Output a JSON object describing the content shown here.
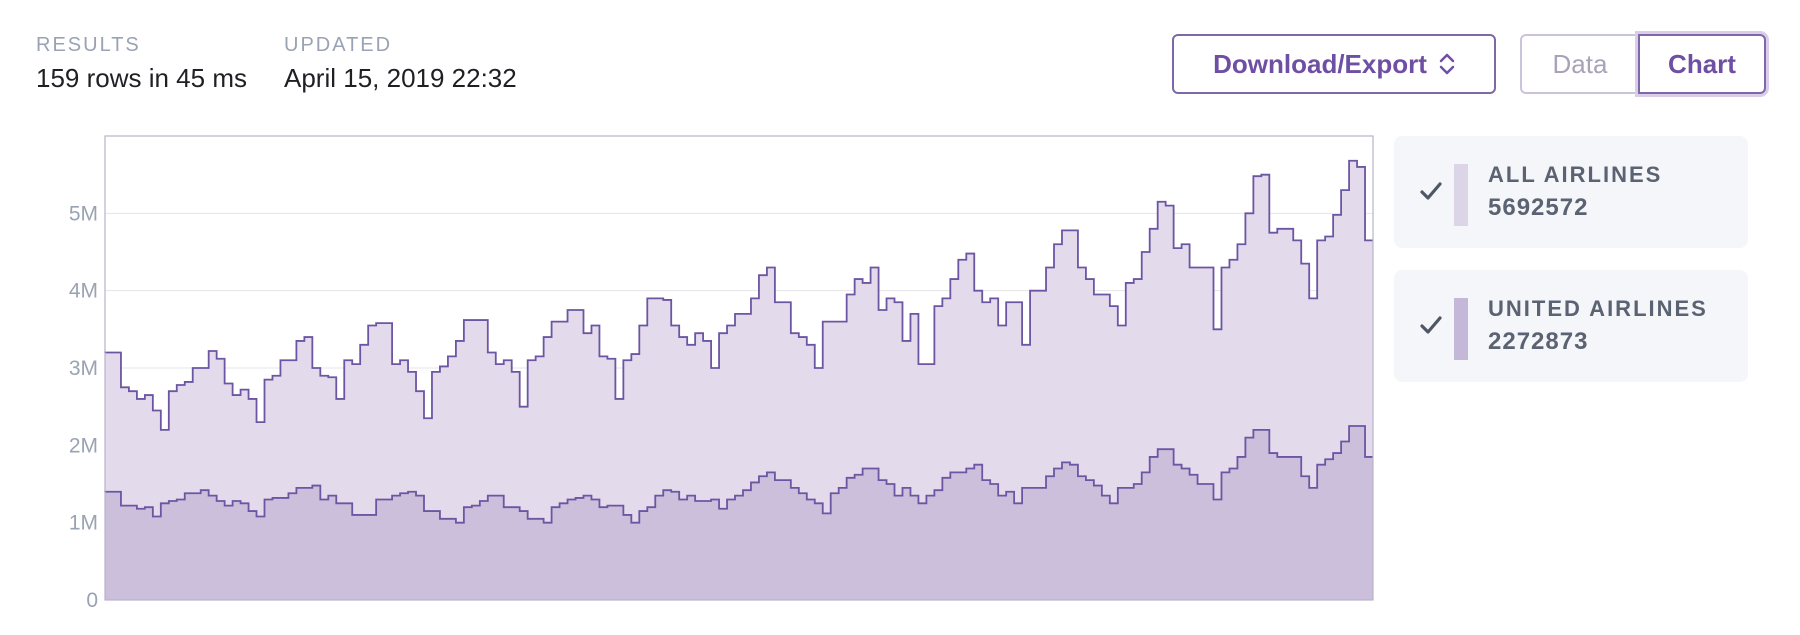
{
  "header": {
    "results_label": "RESULTS",
    "results_value": "159 rows in 45 ms",
    "updated_label": "UPDATED",
    "updated_value": "April 15, 2019 22:32"
  },
  "toolbar": {
    "download_label": "Download/Export",
    "view_toggle": [
      "Data",
      "Chart"
    ],
    "selected_view": "Chart"
  },
  "colors": {
    "accent": "#6f4fa4",
    "line": "#6c55a3",
    "all_fill": "#e3dbec",
    "united_fill": "#cbbfdb",
    "swatch_all": "#dcd5e7",
    "swatch_united": "#c5b7d8"
  },
  "legend": [
    {
      "name": "ALL AIRLINES",
      "value": "5692572",
      "checked": true,
      "icon": "check-icon"
    },
    {
      "name": "UNITED AIRLINES",
      "value": "2272873",
      "checked": true,
      "icon": "check-icon"
    }
  ],
  "chart_data": {
    "type": "area",
    "step": true,
    "ylim": [
      0,
      6000000
    ],
    "y_ticks": [
      {
        "value": 0,
        "label": "0"
      },
      {
        "value": 1000000,
        "label": "1M"
      },
      {
        "value": 2000000,
        "label": "2M"
      },
      {
        "value": 3000000,
        "label": "3M"
      },
      {
        "value": 4000000,
        "label": "4M"
      },
      {
        "value": 5000000,
        "label": "5M"
      }
    ],
    "grid": true,
    "x_labels_visible": false,
    "n_points": 159,
    "series": [
      {
        "name": "ALL AIRLINES",
        "profile": [
          3.2,
          2.75,
          2.7,
          2.6,
          2.65,
          2.45,
          2.2,
          2.7,
          2.78,
          2.82,
          3.0,
          3.22,
          3.12,
          2.8,
          2.65,
          2.72,
          2.6,
          2.3,
          2.85,
          2.9,
          3.1,
          3.35,
          3.4,
          3.0,
          2.9,
          2.88,
          2.6,
          3.1,
          3.05,
          3.3,
          3.55,
          3.58,
          3.05,
          3.1,
          2.95,
          2.7,
          2.35,
          2.95,
          3.02,
          3.15,
          3.35,
          3.62,
          3.62,
          3.2,
          3.05,
          3.1,
          2.95,
          2.5,
          3.1,
          3.15,
          3.4,
          3.6,
          3.75,
          3.75,
          3.45,
          3.55,
          3.15,
          3.12,
          2.6,
          3.1,
          3.18,
          3.55,
          3.9,
          3.88,
          3.55,
          3.4,
          3.3,
          3.45,
          3.35,
          3.0,
          3.45,
          3.55,
          3.7,
          3.9,
          4.2,
          4.3,
          3.85,
          3.85,
          3.45,
          3.4,
          3.3,
          3.0,
          3.6,
          3.6,
          3.95,
          4.15,
          4.1,
          4.3,
          3.75,
          3.9,
          3.85,
          3.35,
          3.7,
          3.05,
          3.8,
          3.9,
          4.15,
          4.4,
          4.48,
          4.0,
          3.85,
          3.9,
          3.55,
          3.85,
          3.3,
          4.0,
          4.0,
          4.3,
          4.6,
          4.78,
          4.78,
          4.3,
          4.15,
          3.95,
          3.8,
          3.55,
          4.1,
          4.15,
          4.5,
          4.8,
          5.15,
          5.1,
          4.55,
          4.6,
          4.3,
          4.3,
          3.5,
          4.3,
          4.4,
          4.6,
          5.0,
          5.48,
          5.5,
          4.75,
          4.8,
          4.65,
          4.35,
          3.9,
          4.65,
          4.7,
          4.98,
          5.3,
          5.68,
          5.6,
          4.65
        ]
      },
      {
        "name": "UNITED AIRLINES",
        "profile": [
          1.4,
          1.22,
          1.22,
          1.18,
          1.2,
          1.08,
          1.25,
          1.28,
          1.3,
          1.38,
          1.42,
          1.35,
          1.28,
          1.22,
          1.28,
          1.25,
          1.15,
          1.08,
          1.3,
          1.32,
          1.38,
          1.45,
          1.45,
          1.48,
          1.3,
          1.35,
          1.25,
          1.25,
          1.1,
          1.1,
          1.3,
          1.3,
          1.35,
          1.38,
          1.4,
          1.35,
          1.15,
          1.15,
          1.05,
          1.0,
          1.2,
          1.22,
          1.28,
          1.35,
          1.35,
          1.2,
          1.2,
          1.15,
          1.05,
          1.0,
          1.2,
          1.25,
          1.3,
          1.32,
          1.35,
          1.3,
          1.2,
          1.22,
          1.1,
          1.0,
          1.15,
          1.2,
          1.35,
          1.42,
          1.4,
          1.3,
          1.35,
          1.28,
          1.3,
          1.18,
          1.3,
          1.35,
          1.42,
          1.52,
          1.6,
          1.65,
          1.55,
          1.45,
          1.38,
          1.3,
          1.25,
          1.12,
          1.38,
          1.45,
          1.58,
          1.62,
          1.7,
          1.55,
          1.5,
          1.35,
          1.45,
          1.35,
          1.25,
          1.35,
          1.42,
          1.58,
          1.65,
          1.7,
          1.75,
          1.55,
          1.5,
          1.35,
          1.4,
          1.25,
          1.45,
          1.45,
          1.6,
          1.7,
          1.78,
          1.75,
          1.6,
          1.55,
          1.48,
          1.35,
          1.25,
          1.45,
          1.5,
          1.65,
          1.85,
          1.95,
          1.95,
          1.75,
          1.7,
          1.62,
          1.5,
          1.3,
          1.65,
          1.7,
          1.85,
          2.1,
          2.2,
          2.2,
          1.9,
          1.85,
          1.85,
          1.6,
          1.45,
          1.75,
          1.82,
          1.9,
          2.05,
          2.25,
          2.25,
          1.85
        ]
      }
    ]
  }
}
